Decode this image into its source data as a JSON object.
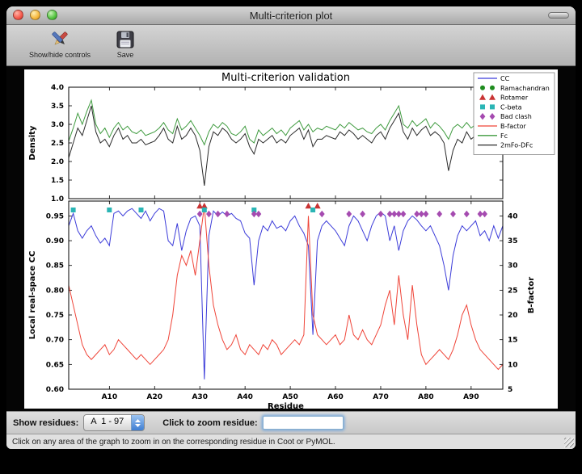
{
  "window": {
    "title": "Multi-criterion plot"
  },
  "toolbar": {
    "items": [
      {
        "id": "show-hide-controls",
        "label": "Show/hide controls",
        "icon": "tools-icon"
      },
      {
        "id": "save",
        "label": "Save",
        "icon": "save-icon"
      }
    ]
  },
  "controls": {
    "show_residues_label": "Show residues:",
    "chain_range_value": "A  1 - 97",
    "zoom_residue_label": "Click to zoom residue:",
    "zoom_residue_value": ""
  },
  "status_bar": {
    "message": "Click on any area of the graph to zoom in on the corresponding residue in Coot or PyMOL."
  },
  "chart_data": [
    {
      "type": "line",
      "title": "Multi-criterion validation",
      "ylabel": "Density",
      "ylim": [
        1.0,
        4.0
      ],
      "yticks": [
        1.0,
        1.5,
        2.0,
        2.5,
        3.0,
        3.5,
        4.0
      ],
      "x_range": [
        1,
        97
      ],
      "grid": false,
      "series": [
        {
          "name": "Fc",
          "color": "#3f9b3f",
          "values": [
            2.55,
            2.9,
            3.3,
            3.0,
            3.35,
            3.65,
            3.0,
            2.75,
            2.9,
            2.65,
            2.9,
            3.05,
            2.85,
            2.95,
            2.8,
            2.75,
            2.85,
            2.7,
            2.75,
            2.8,
            2.9,
            3.05,
            2.85,
            2.75,
            3.15,
            2.85,
            2.95,
            3.1,
            2.9,
            2.7,
            2.45,
            2.8,
            3.0,
            2.9,
            3.05,
            2.95,
            2.75,
            2.7,
            2.8,
            2.95,
            2.6,
            2.5,
            2.85,
            2.7,
            2.8,
            2.9,
            2.75,
            2.85,
            2.7,
            2.9,
            3.0,
            3.1,
            2.85,
            3.0,
            2.8,
            2.9,
            2.85,
            2.95,
            2.9,
            2.85,
            3.0,
            2.9,
            3.05,
            2.95,
            2.85,
            2.9,
            2.8,
            2.75,
            2.9,
            3.0,
            2.85,
            3.1,
            3.3,
            3.5,
            3.0,
            2.9,
            3.1,
            2.95,
            3.05,
            3.15,
            2.9,
            3.05,
            2.95,
            2.8,
            2.6,
            2.9,
            3.0,
            2.9,
            3.05,
            2.9,
            3.0,
            3.1,
            2.9,
            3.35,
            2.9,
            3.5,
            3.2
          ]
        },
        {
          "name": "2mFo-DFc",
          "color": "#2b2b2b",
          "values": [
            2.1,
            2.5,
            2.9,
            2.7,
            3.1,
            3.5,
            2.8,
            2.5,
            2.6,
            2.4,
            2.7,
            2.9,
            2.6,
            2.7,
            2.5,
            2.5,
            2.6,
            2.45,
            2.5,
            2.55,
            2.7,
            2.9,
            2.6,
            2.5,
            2.95,
            2.6,
            2.7,
            2.9,
            2.7,
            2.3,
            1.35,
            2.4,
            2.8,
            2.7,
            2.9,
            2.8,
            2.6,
            2.5,
            2.6,
            2.75,
            2.4,
            2.2,
            2.6,
            2.5,
            2.6,
            2.7,
            2.5,
            2.6,
            2.5,
            2.7,
            2.8,
            2.9,
            2.6,
            2.85,
            2.4,
            2.6,
            2.6,
            2.7,
            2.65,
            2.6,
            2.8,
            2.7,
            2.85,
            2.75,
            2.6,
            2.7,
            2.6,
            2.5,
            2.7,
            2.8,
            2.6,
            2.9,
            3.1,
            3.3,
            2.8,
            2.6,
            2.9,
            2.7,
            2.85,
            2.95,
            2.7,
            2.8,
            2.7,
            2.5,
            1.75,
            2.3,
            2.6,
            2.5,
            2.8,
            2.6,
            2.7,
            2.9,
            2.6,
            3.1,
            2.5,
            3.3,
            2.9
          ]
        }
      ],
      "legend": {
        "position": "upper right",
        "entries": [
          {
            "label": "CC",
            "glyph": "line",
            "color": "#3c3cd9"
          },
          {
            "label": "Ramachandran",
            "glyph": "circle",
            "color": "#1f8c1f"
          },
          {
            "label": "Rotamer",
            "glyph": "triangle",
            "color": "#c93434"
          },
          {
            "label": "C-beta",
            "glyph": "square",
            "color": "#2ab5b5"
          },
          {
            "label": "Bad clash",
            "glyph": "diamond",
            "color": "#a54bb0"
          },
          {
            "label": "B-factor",
            "glyph": "line",
            "color": "#ef4438"
          },
          {
            "label": "Fc",
            "glyph": "line",
            "color": "#3f9b3f"
          },
          {
            "label": "2mFo-DFc",
            "glyph": "line",
            "color": "#2b2b2b"
          }
        ]
      }
    },
    {
      "type": "line",
      "xlabel": "Residue",
      "ylabel": "Local real-space CC",
      "ylabel_right": "B-factor",
      "ylim": [
        0.6,
        0.98
      ],
      "yticks": [
        0.6,
        0.65,
        0.7,
        0.75,
        0.8,
        0.85,
        0.9,
        0.95
      ],
      "ylim_right": [
        5,
        43
      ],
      "yticks_right": [
        5,
        10,
        15,
        20,
        25,
        30,
        35,
        40
      ],
      "x_range": [
        1,
        97
      ],
      "xtick_positions": [
        10,
        20,
        30,
        40,
        50,
        60,
        70,
        80,
        90
      ],
      "xtick_labels": [
        "A10",
        "A20",
        "A30",
        "A40",
        "A50",
        "A60",
        "A70",
        "A80",
        "A90"
      ],
      "grid": false,
      "series": [
        {
          "name": "CC",
          "axis": "left",
          "color": "#3c3cd9",
          "values": [
            0.93,
            0.955,
            0.92,
            0.905,
            0.92,
            0.93,
            0.91,
            0.895,
            0.905,
            0.89,
            0.955,
            0.96,
            0.95,
            0.96,
            0.965,
            0.955,
            0.945,
            0.96,
            0.94,
            0.955,
            0.965,
            0.96,
            0.9,
            0.89,
            0.935,
            0.88,
            0.92,
            0.945,
            0.95,
            0.93,
            0.62,
            0.91,
            0.96,
            0.95,
            0.958,
            0.95,
            0.955,
            0.945,
            0.94,
            0.915,
            0.905,
            0.81,
            0.9,
            0.93,
            0.92,
            0.94,
            0.925,
            0.93,
            0.92,
            0.94,
            0.95,
            0.93,
            0.915,
            0.89,
            0.71,
            0.9,
            0.93,
            0.94,
            0.93,
            0.92,
            0.905,
            0.89,
            0.93,
            0.95,
            0.94,
            0.92,
            0.9,
            0.93,
            0.95,
            0.958,
            0.95,
            0.9,
            0.93,
            0.88,
            0.92,
            0.94,
            0.95,
            0.942,
            0.93,
            0.92,
            0.93,
            0.91,
            0.89,
            0.85,
            0.8,
            0.87,
            0.91,
            0.93,
            0.92,
            0.93,
            0.94,
            0.91,
            0.92,
            0.9,
            0.93,
            0.905,
            0.93
          ]
        },
        {
          "name": "B-factor",
          "axis": "right",
          "color": "#ef4438",
          "values": [
            26,
            22,
            18,
            14,
            12,
            11,
            12,
            13,
            14,
            12,
            13,
            15,
            14,
            13,
            12,
            11,
            12,
            11,
            10,
            11,
            12,
            13,
            15,
            20,
            28,
            32,
            30,
            33,
            28,
            35,
            42,
            30,
            22,
            18,
            15,
            13,
            14,
            16,
            13,
            12,
            14,
            13,
            12,
            14,
            13,
            15,
            14,
            12,
            13,
            14,
            15,
            14,
            16,
            40,
            20,
            16,
            15,
            14,
            15,
            16,
            14,
            15,
            20,
            16,
            15,
            17,
            15,
            14,
            16,
            18,
            22,
            25,
            18,
            28,
            20,
            15,
            26,
            18,
            12,
            10,
            11,
            12,
            13,
            12,
            11,
            13,
            16,
            20,
            22,
            18,
            15,
            13,
            12,
            11,
            10,
            9,
            10
          ]
        }
      ],
      "outlier_markers": [
        {
          "name": "Rotamer",
          "shape": "triangle",
          "color": "#c93434",
          "residues": [
            30,
            31,
            54,
            56
          ]
        },
        {
          "name": "C-beta",
          "shape": "square",
          "color": "#2ab5b5",
          "residues": [
            2,
            10,
            17,
            31,
            42,
            55
          ]
        },
        {
          "name": "Bad clash",
          "shape": "diamond",
          "color": "#a54bb0",
          "residues": [
            30,
            32,
            34,
            36,
            42,
            43,
            57,
            63,
            66,
            70,
            72,
            73,
            74,
            75,
            78,
            79,
            80,
            83,
            86,
            89,
            92,
            93
          ]
        },
        {
          "name": "Ramachandran",
          "shape": "circle",
          "color": "#1f8c1f",
          "residues": []
        }
      ]
    }
  ]
}
